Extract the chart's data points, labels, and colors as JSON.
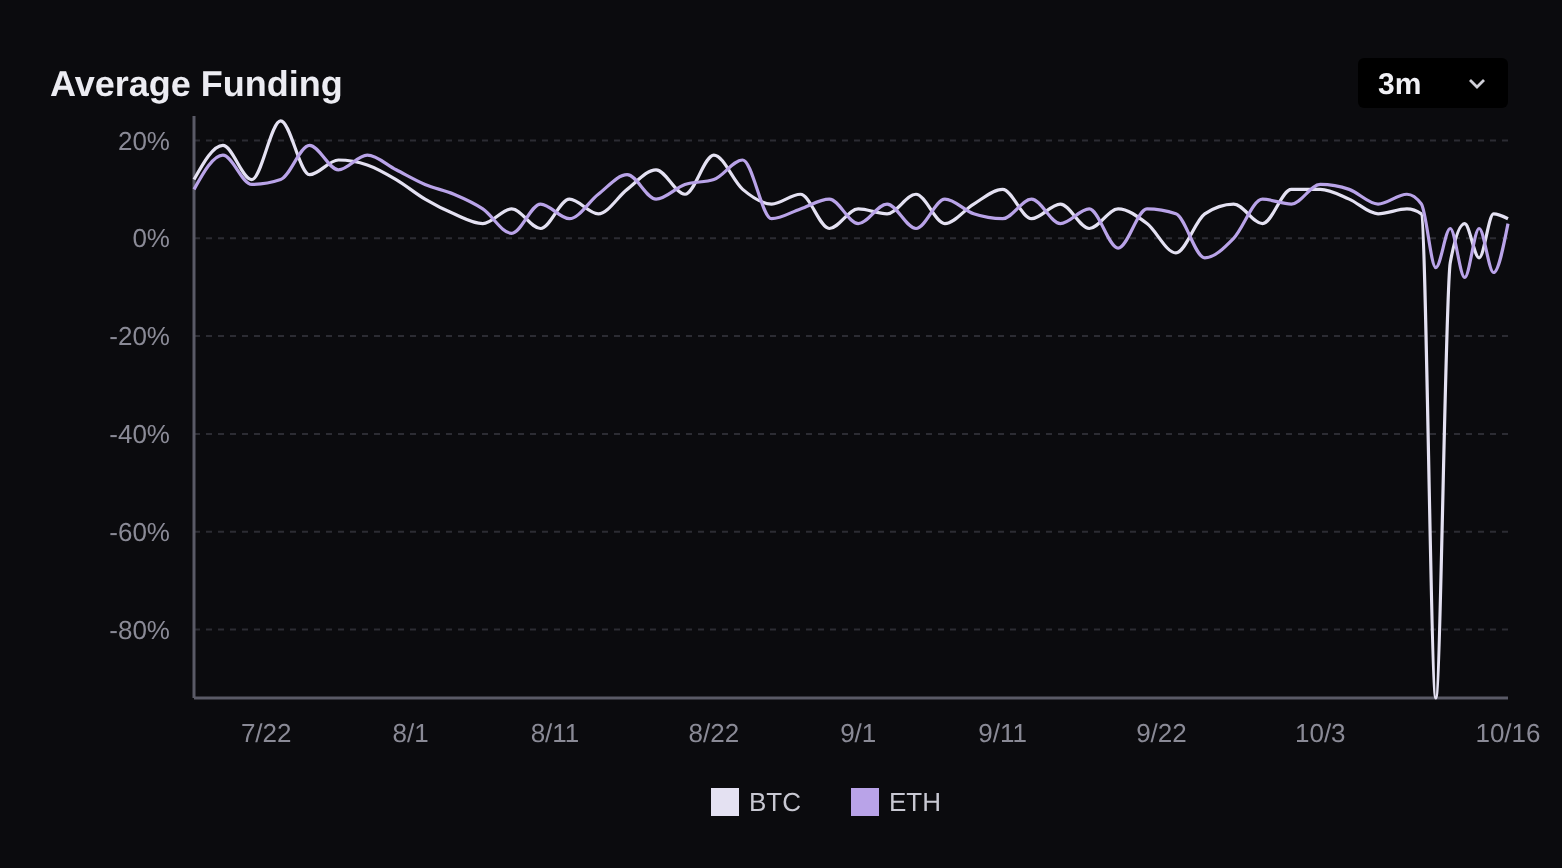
{
  "chart_data": {
    "type": "line",
    "title": "Average Funding",
    "annotations": [
      "3m"
    ],
    "x": [
      "--07-17",
      "--07-19",
      "--07-21",
      "--07-23",
      "--07-25",
      "--07-27",
      "--07-29",
      "--07-31",
      "--08-02",
      "--08-04",
      "--08-06",
      "--08-08",
      "--08-10",
      "--08-12",
      "--08-14",
      "--08-16",
      "--08-18",
      "--08-20",
      "--08-22",
      "--08-24",
      "--08-26",
      "--08-28",
      "--08-30",
      "--09-01",
      "--09-03",
      "--09-05",
      "--09-07",
      "--09-09",
      "--09-11",
      "--09-13",
      "--09-15",
      "--09-17",
      "--09-19",
      "--09-21",
      "--09-23",
      "--09-25",
      "--09-27",
      "--09-29",
      "--10-01",
      "--10-03",
      "--10-05",
      "--10-07",
      "--10-09",
      "--10-10",
      "--10-11",
      "--10-12",
      "--10-13",
      "--10-14",
      "--10-15",
      "--10-16"
    ],
    "series": [
      {
        "name": "BTC",
        "color": "#e4e1f2",
        "values": [
          12,
          19,
          12,
          24,
          13,
          16,
          15,
          12,
          8,
          5,
          3,
          6,
          2,
          8,
          5,
          10,
          14,
          9,
          17,
          10,
          7,
          9,
          2,
          6,
          5,
          9,
          3,
          7,
          10,
          4,
          7,
          2,
          6,
          3,
          -3,
          5,
          7,
          3,
          10,
          10,
          8,
          5,
          6,
          5,
          -94,
          -5,
          3,
          -4,
          5,
          4
        ]
      },
      {
        "name": "ETH",
        "color": "#b9a3e8",
        "values": [
          10,
          17,
          11,
          12,
          19,
          14,
          17,
          14,
          11,
          9,
          6,
          1,
          7,
          4,
          9,
          13,
          8,
          11,
          12,
          16,
          4,
          6,
          8,
          3,
          7,
          2,
          8,
          5,
          4,
          8,
          3,
          6,
          -2,
          6,
          5,
          -4,
          0,
          8,
          7,
          11,
          10,
          7,
          9,
          7,
          -6,
          2,
          -8,
          2,
          -7,
          3
        ]
      }
    ],
    "xlim": [
      "--07-17",
      "--10-16"
    ],
    "xticks": [
      {
        "value": "--07-22",
        "label": "7/22"
      },
      {
        "value": "--08-01",
        "label": "8/1"
      },
      {
        "value": "--08-11",
        "label": "8/11"
      },
      {
        "value": "--08-22",
        "label": "8/22"
      },
      {
        "value": "--09-01",
        "label": "9/1"
      },
      {
        "value": "--09-11",
        "label": "9/11"
      },
      {
        "value": "--09-22",
        "label": "9/22"
      },
      {
        "value": "--10-03",
        "label": "10/3"
      },
      {
        "value": "--10-16",
        "label": "10/16"
      }
    ],
    "ylim": [
      -94,
      25
    ],
    "yticks": [
      {
        "value": 20,
        "label": "20%"
      },
      {
        "value": 0,
        "label": "0%"
      },
      {
        "value": -20,
        "label": "-20%"
      },
      {
        "value": -40,
        "label": "-40%"
      },
      {
        "value": -60,
        "label": "-60%"
      },
      {
        "value": -80,
        "label": "-80%"
      }
    ],
    "grid": "y",
    "legend": "bottom",
    "marker": "none",
    "line_style": "solid"
  }
}
